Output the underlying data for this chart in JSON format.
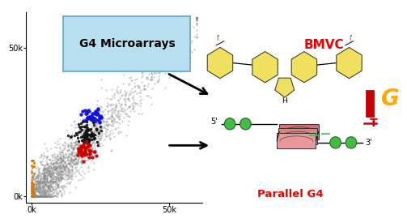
{
  "title": "G4 Microarrays",
  "title_box_color": "#b8dff0",
  "xlabel": "",
  "ylabel": "",
  "xlim": [
    -2000,
    62000
  ],
  "ylim": [
    -2000,
    62000
  ],
  "xticks": [
    0,
    50000
  ],
  "yticks": [
    0,
    50000
  ],
  "xticklabels": [
    "0k",
    "50k"
  ],
  "yticklabels": [
    "0k",
    "50k"
  ],
  "bg_color": "#ffffff",
  "scatter_gray_color": "#888888",
  "scatter_orange_color": "#e07800",
  "scatter_blue_color": "#1111dd",
  "scatter_black_color": "#111111",
  "scatter_red_color": "#cc0000",
  "bmvc_color": "#ee0000",
  "bmvc_text": "BMVC",
  "parallel_color": "#ee0000",
  "parallel_text": "Parallel G4",
  "molecule_fill": "#f0e060",
  "molecule_edge": "#444422",
  "green_fill": "#44bb44",
  "green_edge": "#226622",
  "quad_fill": "#e89090",
  "quad_edge": "#333333",
  "orange_g": "#ffaa00",
  "red_t": "#cc0000"
}
